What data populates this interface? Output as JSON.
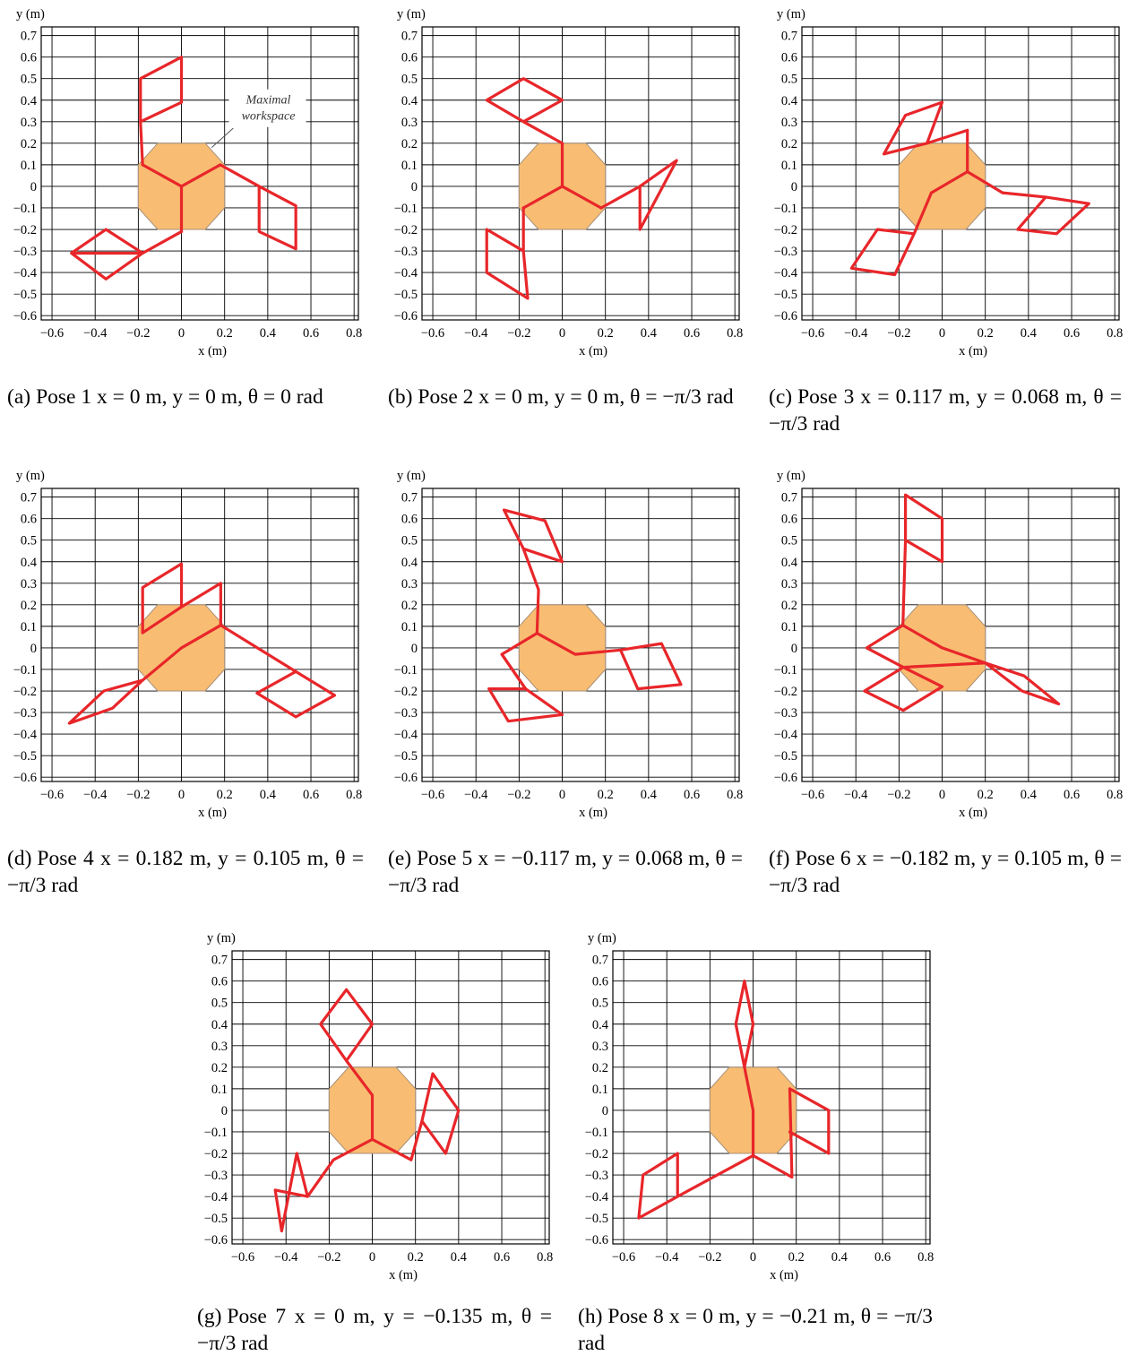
{
  "axes": {
    "x_label": "x (m)",
    "y_label": "y (m)",
    "x_ticks": [
      "−0.6",
      "−0.4",
      "−0.2",
      "0",
      "0.2",
      "0.4",
      "0.6",
      "0.8"
    ],
    "y_ticks": [
      "0.7",
      "0.6",
      "0.5",
      "0.4",
      "0.3",
      "0.2",
      "0.1",
      "0",
      "−0.1",
      "−0.2",
      "−0.3",
      "−0.4",
      "−0.5",
      "−0.6"
    ],
    "xlim": [
      -0.65,
      0.82
    ],
    "ylim": [
      -0.62,
      0.74
    ]
  },
  "colors": {
    "mechanism": "#e8262a",
    "workspace_fill": "#f8bd72",
    "workspace_edge": "#a78e78",
    "grid": "#000000"
  },
  "annotation": {
    "line1": "Maximal",
    "line2": "workspace"
  },
  "captions": [
    {
      "label": "(a)",
      "text": "Pose 1 x = 0 m, y = 0 m, θ = 0 rad"
    },
    {
      "label": "(b)",
      "text": "Pose 2 x = 0 m, y = 0 m, θ = −π/3 rad"
    },
    {
      "label": "(c)",
      "text": "Pose 3 x = 0.117 m, y = 0.068 m, θ = −π/3 rad"
    },
    {
      "label": "(d)",
      "text": "Pose 4 x = 0.182 m, y = 0.105 m, θ = −π/3 rad"
    },
    {
      "label": "(e)",
      "text": "Pose 5 x = −0.117 m, y = 0.068 m, θ = −π/3 rad"
    },
    {
      "label": "(f)",
      "text": "Pose 6 x = −0.182 m, y = 0.105 m, θ = −π/3 rad"
    },
    {
      "label": "(g)",
      "text": "Pose 7 x = 0 m, y = −0.135 m, θ = −π/3 rad"
    },
    {
      "label": "(h)",
      "text": "Pose 8 x = 0 m, y = −0.21 m, θ = −π/3 rad"
    }
  ],
  "chart_data": [
    {
      "type": "scatter",
      "pose": "Pose 1",
      "workspace": [
        [
          -0.11,
          0.2
        ],
        [
          0.11,
          0.2
        ],
        [
          0.2,
          0.1
        ],
        [
          0.2,
          -0.1
        ],
        [
          0.11,
          -0.2
        ],
        [
          -0.11,
          -0.2
        ],
        [
          -0.2,
          -0.1
        ],
        [
          -0.2,
          0.1
        ]
      ],
      "polylines": [
        [
          [
            0,
            0
          ],
          [
            0,
            -0.21
          ]
        ],
        [
          [
            0,
            0
          ],
          [
            0.18,
            0.1
          ]
        ],
        [
          [
            0,
            0
          ],
          [
            -0.18,
            0.1
          ]
        ],
        [
          [
            -0.18,
            0.1
          ],
          [
            -0.19,
            0.3
          ],
          [
            -0.19,
            0.5
          ],
          [
            0,
            0.6
          ],
          [
            0,
            0.39
          ],
          [
            -0.19,
            0.3
          ]
        ],
        [
          [
            0.18,
            0.1
          ],
          [
            0.36,
            0
          ],
          [
            0.53,
            -0.09
          ],
          [
            0.53,
            -0.29
          ],
          [
            0.36,
            -0.21
          ],
          [
            0.36,
            0
          ]
        ],
        [
          [
            0,
            -0.21
          ],
          [
            -0.18,
            -0.31
          ],
          [
            -0.51,
            -0.31
          ],
          [
            -0.35,
            -0.43
          ],
          [
            -0.18,
            -0.31
          ],
          [
            -0.35,
            -0.2
          ],
          [
            -0.51,
            -0.31
          ]
        ]
      ]
    },
    {
      "type": "scatter",
      "pose": "Pose 2",
      "workspace": [
        [
          -0.11,
          0.2
        ],
        [
          0.11,
          0.2
        ],
        [
          0.2,
          0.1
        ],
        [
          0.2,
          -0.1
        ],
        [
          0.11,
          -0.2
        ],
        [
          -0.11,
          -0.2
        ],
        [
          -0.2,
          -0.1
        ],
        [
          -0.2,
          0.1
        ]
      ],
      "polylines": [
        [
          [
            0,
            0
          ],
          [
            0,
            0.2
          ]
        ],
        [
          [
            0,
            0
          ],
          [
            0.18,
            -0.1
          ]
        ],
        [
          [
            0,
            0
          ],
          [
            -0.18,
            -0.1
          ]
        ],
        [
          [
            0,
            0.2
          ],
          [
            -0.18,
            0.3
          ],
          [
            -0.35,
            0.4
          ],
          [
            -0.18,
            0.5
          ],
          [
            0,
            0.4
          ],
          [
            -0.18,
            0.3
          ]
        ],
        [
          [
            0.18,
            -0.1
          ],
          [
            0.36,
            0
          ],
          [
            0.53,
            0.12
          ],
          [
            0.36,
            -0.2
          ],
          [
            0.36,
            0
          ]
        ],
        [
          [
            -0.18,
            -0.1
          ],
          [
            -0.18,
            -0.3
          ],
          [
            -0.35,
            -0.2
          ],
          [
            -0.35,
            -0.4
          ],
          [
            -0.16,
            -0.52
          ],
          [
            -0.18,
            -0.3
          ]
        ]
      ]
    },
    {
      "type": "scatter",
      "pose": "Pose 3",
      "workspace": [
        [
          -0.11,
          0.2
        ],
        [
          0.11,
          0.2
        ],
        [
          0.2,
          0.1
        ],
        [
          0.2,
          -0.1
        ],
        [
          0.11,
          -0.2
        ],
        [
          -0.11,
          -0.2
        ],
        [
          -0.2,
          -0.1
        ],
        [
          -0.2,
          0.1
        ]
      ],
      "polylines": [
        [
          [
            0.117,
            0.068
          ],
          [
            0.117,
            0.26
          ]
        ],
        [
          [
            0.117,
            0.068
          ],
          [
            0.28,
            -0.03
          ]
        ],
        [
          [
            0.117,
            0.068
          ],
          [
            -0.05,
            -0.03
          ]
        ],
        [
          [
            0.117,
            0.26
          ],
          [
            -0.07,
            0.2
          ],
          [
            -0.27,
            0.15
          ],
          [
            -0.17,
            0.33
          ],
          [
            0,
            0.39
          ],
          [
            -0.07,
            0.2
          ]
        ],
        [
          [
            0.28,
            -0.03
          ],
          [
            0.48,
            -0.05
          ],
          [
            0.68,
            -0.08
          ],
          [
            0.53,
            -0.22
          ],
          [
            0.35,
            -0.2
          ],
          [
            0.48,
            -0.05
          ]
        ],
        [
          [
            -0.05,
            -0.03
          ],
          [
            -0.13,
            -0.22
          ],
          [
            -0.3,
            -0.2
          ],
          [
            -0.42,
            -0.38
          ],
          [
            -0.22,
            -0.41
          ],
          [
            -0.13,
            -0.22
          ]
        ]
      ]
    },
    {
      "type": "scatter",
      "pose": "Pose 4",
      "workspace": [
        [
          -0.11,
          0.2
        ],
        [
          0.11,
          0.2
        ],
        [
          0.2,
          0.1
        ],
        [
          0.2,
          -0.1
        ],
        [
          0.11,
          -0.2
        ],
        [
          -0.11,
          -0.2
        ],
        [
          -0.2,
          -0.1
        ],
        [
          -0.2,
          0.1
        ]
      ],
      "polylines": [
        [
          [
            0.182,
            0.105
          ],
          [
            0.182,
            0.3
          ],
          [
            0,
            0.19
          ],
          [
            -0.18,
            0.07
          ],
          [
            -0.18,
            0.28
          ],
          [
            0,
            0.39
          ],
          [
            0,
            0.19
          ]
        ],
        [
          [
            0.182,
            0.105
          ],
          [
            0,
            0
          ]
        ],
        [
          [
            0.182,
            0.105
          ],
          [
            0.53,
            -0.11
          ],
          [
            0.71,
            -0.22
          ],
          [
            0.53,
            -0.32
          ],
          [
            0.35,
            -0.21
          ],
          [
            0.53,
            -0.11
          ]
        ],
        [
          [
            0,
            0
          ],
          [
            -0.18,
            -0.15
          ],
          [
            -0.36,
            -0.2
          ],
          [
            -0.52,
            -0.35
          ],
          [
            -0.32,
            -0.28
          ],
          [
            -0.18,
            -0.15
          ]
        ]
      ]
    },
    {
      "type": "scatter",
      "pose": "Pose 5",
      "workspace": [
        [
          -0.11,
          0.2
        ],
        [
          0.11,
          0.2
        ],
        [
          0.2,
          0.1
        ],
        [
          0.2,
          -0.1
        ],
        [
          0.11,
          -0.2
        ],
        [
          -0.11,
          -0.2
        ],
        [
          -0.2,
          -0.1
        ],
        [
          -0.2,
          0.1
        ]
      ],
      "polylines": [
        [
          [
            -0.117,
            0.068
          ],
          [
            -0.11,
            0.27
          ],
          [
            -0.18,
            0.46
          ],
          [
            -0.27,
            0.64
          ],
          [
            -0.08,
            0.59
          ],
          [
            0,
            0.4
          ],
          [
            -0.18,
            0.46
          ]
        ],
        [
          [
            -0.117,
            0.068
          ],
          [
            0.06,
            -0.03
          ],
          [
            0.27,
            -0.01
          ],
          [
            0.46,
            0.02
          ],
          [
            0.55,
            -0.17
          ],
          [
            0.35,
            -0.19
          ],
          [
            0.27,
            -0.01
          ]
        ],
        [
          [
            -0.117,
            0.068
          ],
          [
            -0.28,
            -0.03
          ],
          [
            -0.17,
            -0.19
          ],
          [
            -0.34,
            -0.19
          ],
          [
            -0.25,
            -0.34
          ],
          [
            0,
            -0.31
          ],
          [
            -0.17,
            -0.19
          ]
        ],
        [
          [
            -0.28,
            -0.03
          ],
          [
            -0.17,
            -0.19
          ]
        ]
      ]
    },
    {
      "type": "scatter",
      "pose": "Pose 6",
      "workspace": [
        [
          -0.11,
          0.2
        ],
        [
          0.11,
          0.2
        ],
        [
          0.2,
          0.1
        ],
        [
          0.2,
          -0.1
        ],
        [
          0.11,
          -0.2
        ],
        [
          -0.11,
          -0.2
        ],
        [
          -0.2,
          -0.1
        ],
        [
          -0.2,
          0.1
        ]
      ],
      "polylines": [
        [
          [
            -0.182,
            0.105
          ],
          [
            -0.17,
            0.5
          ],
          [
            -0.17,
            0.71
          ],
          [
            0,
            0.6
          ],
          [
            0,
            0.4
          ],
          [
            -0.17,
            0.5
          ]
        ],
        [
          [
            -0.182,
            0.105
          ],
          [
            0,
            0
          ],
          [
            0.2,
            -0.07
          ]
        ],
        [
          [
            0.2,
            -0.07
          ],
          [
            0.38,
            -0.13
          ],
          [
            0.54,
            -0.26
          ],
          [
            0.37,
            -0.2
          ],
          [
            0.2,
            -0.07
          ]
        ],
        [
          [
            -0.182,
            0.105
          ],
          [
            -0.35,
            0
          ],
          [
            -0.18,
            -0.09
          ],
          [
            0,
            -0.18
          ],
          [
            -0.18,
            -0.29
          ],
          [
            -0.36,
            -0.2
          ],
          [
            -0.18,
            -0.09
          ]
        ],
        [
          [
            -0.18,
            -0.09
          ],
          [
            0.2,
            -0.07
          ]
        ]
      ]
    },
    {
      "type": "scatter",
      "pose": "Pose 7",
      "workspace": [
        [
          -0.11,
          0.2
        ],
        [
          0.11,
          0.2
        ],
        [
          0.2,
          0.1
        ],
        [
          0.2,
          -0.1
        ],
        [
          0.11,
          -0.2
        ],
        [
          -0.11,
          -0.2
        ],
        [
          -0.2,
          -0.1
        ],
        [
          -0.2,
          0.1
        ]
      ],
      "polylines": [
        [
          [
            0,
            -0.135
          ],
          [
            0,
            0.07
          ],
          [
            -0.12,
            0.23
          ],
          [
            0,
            0.4
          ],
          [
            -0.12,
            0.56
          ],
          [
            -0.24,
            0.4
          ],
          [
            -0.12,
            0.23
          ]
        ],
        [
          [
            0,
            -0.135
          ],
          [
            0.18,
            -0.23
          ],
          [
            0.23,
            -0.05
          ],
          [
            0.34,
            -0.2
          ],
          [
            0.4,
            0
          ],
          [
            0.28,
            0.17
          ],
          [
            0.23,
            -0.05
          ]
        ],
        [
          [
            0,
            -0.135
          ],
          [
            -0.18,
            -0.23
          ],
          [
            -0.3,
            -0.4
          ],
          [
            -0.35,
            -0.2
          ],
          [
            -0.42,
            -0.56
          ],
          [
            -0.45,
            -0.37
          ],
          [
            -0.3,
            -0.4
          ]
        ]
      ]
    },
    {
      "type": "scatter",
      "pose": "Pose 8",
      "workspace": [
        [
          -0.11,
          0.2
        ],
        [
          0.11,
          0.2
        ],
        [
          0.2,
          0.1
        ],
        [
          0.2,
          -0.1
        ],
        [
          0.11,
          -0.2
        ],
        [
          -0.11,
          -0.2
        ],
        [
          -0.2,
          -0.1
        ],
        [
          -0.2,
          0.1
        ]
      ],
      "polylines": [
        [
          [
            0,
            -0.21
          ],
          [
            0,
            0
          ],
          [
            -0.04,
            0.2
          ],
          [
            -0.08,
            0.4
          ],
          [
            -0.04,
            0.6
          ],
          [
            0,
            0.4
          ],
          [
            -0.04,
            0.2
          ]
        ],
        [
          [
            0,
            -0.21
          ],
          [
            0.18,
            -0.31
          ],
          [
            0.17,
            0.1
          ],
          [
            0.35,
            0
          ],
          [
            0.35,
            -0.2
          ],
          [
            0.17,
            -0.1
          ]
        ],
        [
          [
            0,
            -0.21
          ],
          [
            -0.35,
            -0.4
          ],
          [
            -0.53,
            -0.5
          ],
          [
            -0.51,
            -0.3
          ],
          [
            -0.35,
            -0.2
          ],
          [
            -0.35,
            -0.4
          ]
        ]
      ]
    }
  ]
}
